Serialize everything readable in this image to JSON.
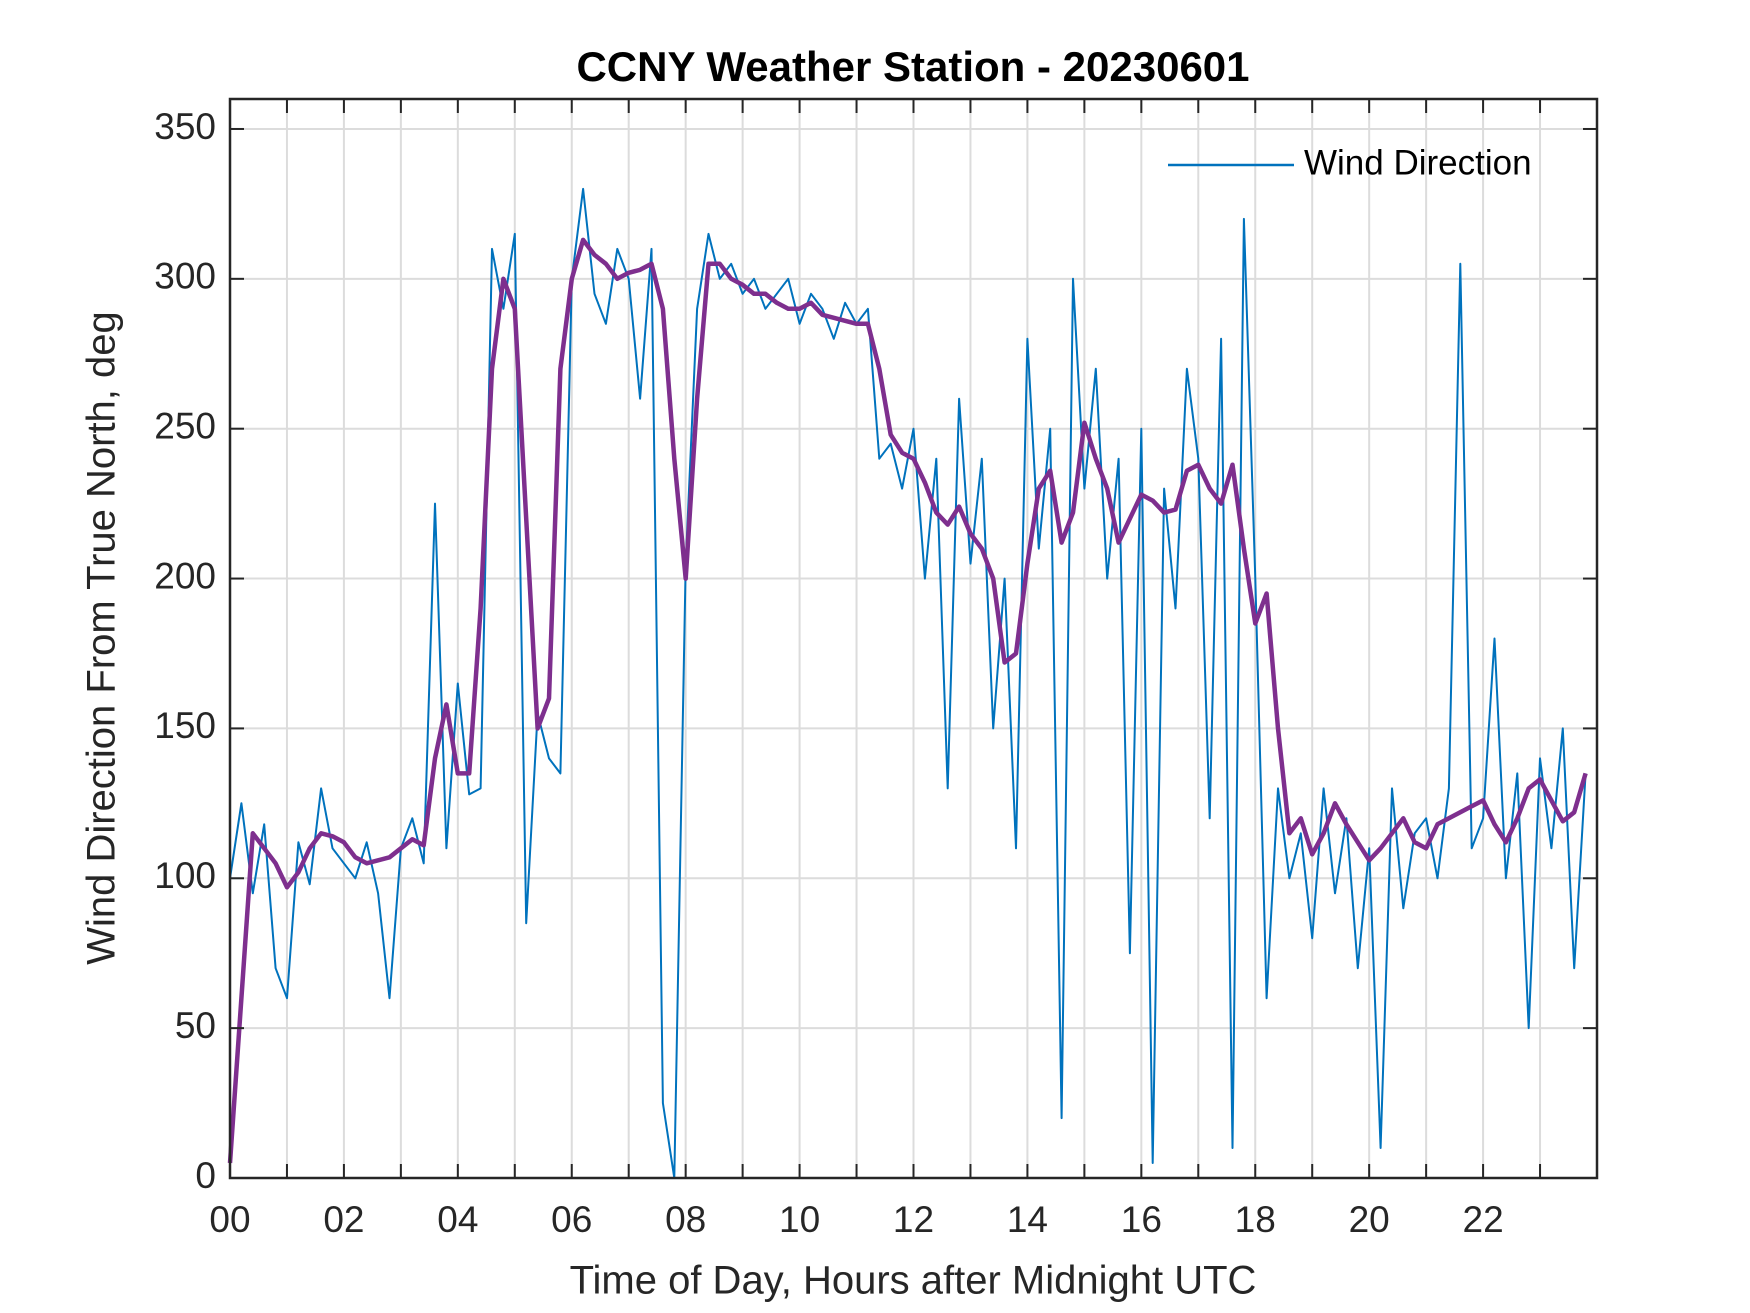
{
  "chart_data": {
    "type": "line",
    "title": "CCNY Weather Station - 20230601",
    "xlabel": "Time of Day, Hours after Midnight UTC",
    "ylabel": "Wind Direction From True North, deg",
    "x": [
      0,
      0.2,
      0.4,
      0.6,
      0.8,
      1,
      1.2,
      1.4,
      1.6,
      1.8,
      2,
      2.2,
      2.4,
      2.6,
      2.8,
      3,
      3.2,
      3.4,
      3.6,
      3.8,
      4,
      4.2,
      4.4,
      4.6,
      4.8,
      5,
      5.2,
      5.4,
      5.6,
      5.8,
      6,
      6.2,
      6.4,
      6.6,
      6.8,
      7,
      7.2,
      7.4,
      7.6,
      7.8,
      8,
      8.2,
      8.4,
      8.6,
      8.8,
      9,
      9.2,
      9.4,
      9.6,
      9.8,
      10,
      10.2,
      10.4,
      10.6,
      10.8,
      11,
      11.2,
      11.4,
      11.6,
      11.8,
      12,
      12.2,
      12.4,
      12.6,
      12.8,
      13,
      13.2,
      13.4,
      13.6,
      13.8,
      14,
      14.2,
      14.4,
      14.6,
      14.8,
      15,
      15.2,
      15.4,
      15.6,
      15.8,
      16,
      16.2,
      16.4,
      16.6,
      16.8,
      17,
      17.2,
      17.4,
      17.6,
      17.8,
      18,
      18.2,
      18.4,
      18.6,
      18.8,
      19,
      19.2,
      19.4,
      19.6,
      19.8,
      20,
      20.2,
      20.4,
      20.6,
      20.8,
      21,
      21.2,
      21.4,
      21.6,
      21.8,
      22,
      22.2,
      22.4,
      22.6,
      22.8,
      23,
      23.2,
      23.4,
      23.6,
      23.8
    ],
    "series": [
      {
        "name": "Wind Direction",
        "color": "#0072bd",
        "values": [
          100,
          125,
          95,
          118,
          70,
          60,
          112,
          98,
          130,
          110,
          105,
          100,
          112,
          95,
          60,
          110,
          120,
          105,
          225,
          110,
          165,
          128,
          130,
          310,
          290,
          315,
          85,
          155,
          140,
          135,
          300,
          330,
          295,
          285,
          310,
          300,
          260,
          310,
          25,
          0,
          205,
          290,
          315,
          300,
          305,
          295,
          300,
          290,
          295,
          300,
          285,
          295,
          290,
          280,
          292,
          285,
          290,
          240,
          245,
          230,
          250,
          200,
          240,
          130,
          260,
          205,
          240,
          150,
          200,
          110,
          280,
          210,
          250,
          20,
          300,
          230,
          270,
          200,
          240,
          75,
          250,
          5,
          230,
          190,
          270,
          240,
          120,
          280,
          10,
          320,
          200,
          60,
          130,
          100,
          115,
          80,
          130,
          95,
          120,
          70,
          110,
          10,
          130,
          90,
          115,
          120,
          100,
          130,
          305,
          110,
          120,
          180,
          100,
          135,
          50,
          140,
          110,
          150,
          70,
          135
        ]
      },
      {
        "color": "#7e2f8e",
        "values": [
          5,
          60,
          115,
          110,
          105,
          97,
          102,
          110,
          115,
          114,
          112,
          107,
          105,
          106,
          107,
          110,
          113,
          111,
          140,
          158,
          135,
          135,
          190,
          270,
          300,
          290,
          220,
          150,
          160,
          270,
          300,
          313,
          308,
          305,
          300,
          302,
          303,
          305,
          290,
          240,
          200,
          260,
          305,
          305,
          300,
          298,
          295,
          295,
          292,
          290,
          290,
          292,
          288,
          287,
          286,
          285,
          285,
          270,
          248,
          242,
          240,
          232,
          222,
          218,
          224,
          215,
          210,
          200,
          172,
          175,
          205,
          230,
          236,
          212,
          222,
          252,
          240,
          230,
          212,
          220,
          228,
          226,
          222,
          223,
          236,
          238,
          230,
          225,
          238,
          210,
          185,
          195,
          150,
          115,
          120,
          108,
          115,
          125,
          118,
          112,
          106,
          110,
          115,
          120,
          112,
          110,
          118,
          120,
          122,
          124,
          126,
          118,
          112,
          120,
          130,
          133,
          126,
          119,
          122,
          135
        ]
      }
    ],
    "xlim": [
      0,
      24
    ],
    "xticks": [
      {
        "value": 0,
        "label": "00"
      },
      {
        "value": 2,
        "label": "02"
      },
      {
        "value": 4,
        "label": "04"
      },
      {
        "value": 6,
        "label": "06"
      },
      {
        "value": 8,
        "label": "08"
      },
      {
        "value": 10,
        "label": "10"
      },
      {
        "value": 12,
        "label": "12"
      },
      {
        "value": 14,
        "label": "14"
      },
      {
        "value": 16,
        "label": "16"
      },
      {
        "value": 18,
        "label": "18"
      },
      {
        "value": 20,
        "label": "20"
      },
      {
        "value": 22,
        "label": "22"
      }
    ],
    "xminorticks": [
      1,
      3,
      5,
      7,
      9,
      11,
      13,
      15,
      17,
      19,
      21,
      23
    ],
    "ylim": [
      0,
      360
    ],
    "yticks": [
      0,
      50,
      100,
      150,
      200,
      250,
      300,
      350
    ],
    "grid": true,
    "legend": "upper right"
  }
}
